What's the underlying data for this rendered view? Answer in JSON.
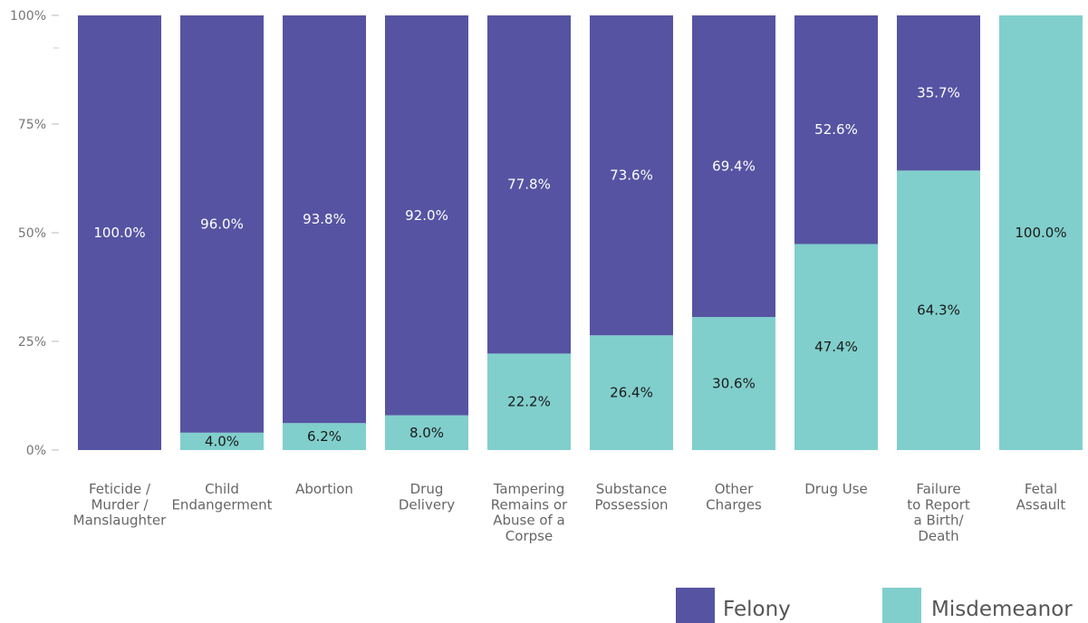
{
  "chart_data": {
    "type": "bar",
    "stacked": true,
    "percent": true,
    "title": "",
    "xlabel": "",
    "ylabel": "",
    "ylim": [
      0,
      100
    ],
    "y_ticks": [
      "0%",
      "25%",
      "50%",
      "75%",
      "100%"
    ],
    "grid": false,
    "legend_position": "bottom-right",
    "categories": [
      [
        "Feticide /",
        "Murder /",
        "Manslaughter"
      ],
      [
        "Child",
        "Endangerment"
      ],
      [
        "Abortion"
      ],
      [
        "Drug",
        "Delivery"
      ],
      [
        "Tampering",
        "Remains or",
        "Abuse of a",
        "Corpse"
      ],
      [
        "Substance",
        "Possession"
      ],
      [
        "Other",
        "Charges"
      ],
      [
        "Drug Use"
      ],
      [
        "Failure",
        "to Report",
        "a Birth/",
        "Death"
      ],
      [
        "Fetal",
        "Assault"
      ]
    ],
    "series": [
      {
        "name": "Felony",
        "color": "#5654a2",
        "label_color": "#ffffff",
        "values": [
          100.0,
          96.0,
          93.8,
          92.0,
          77.8,
          73.6,
          69.4,
          52.6,
          35.7,
          0
        ],
        "labels": [
          "100.0%",
          "96.0%",
          "93.8%",
          "92.0%",
          "77.8%",
          "73.6%",
          "69.4%",
          "52.6%",
          "35.7%",
          ""
        ]
      },
      {
        "name": "Misdemeanor",
        "color": "#80cfcc",
        "label_color": "#1a1a1a",
        "values": [
          0,
          4.0,
          6.2,
          8.0,
          22.2,
          26.4,
          30.6,
          47.4,
          64.3,
          100.0
        ],
        "labels": [
          "",
          "4.0%",
          "6.2%",
          "8.0%",
          "22.2%",
          "26.4%",
          "30.6%",
          "47.4%",
          "64.3%",
          "100.0%"
        ]
      }
    ]
  }
}
